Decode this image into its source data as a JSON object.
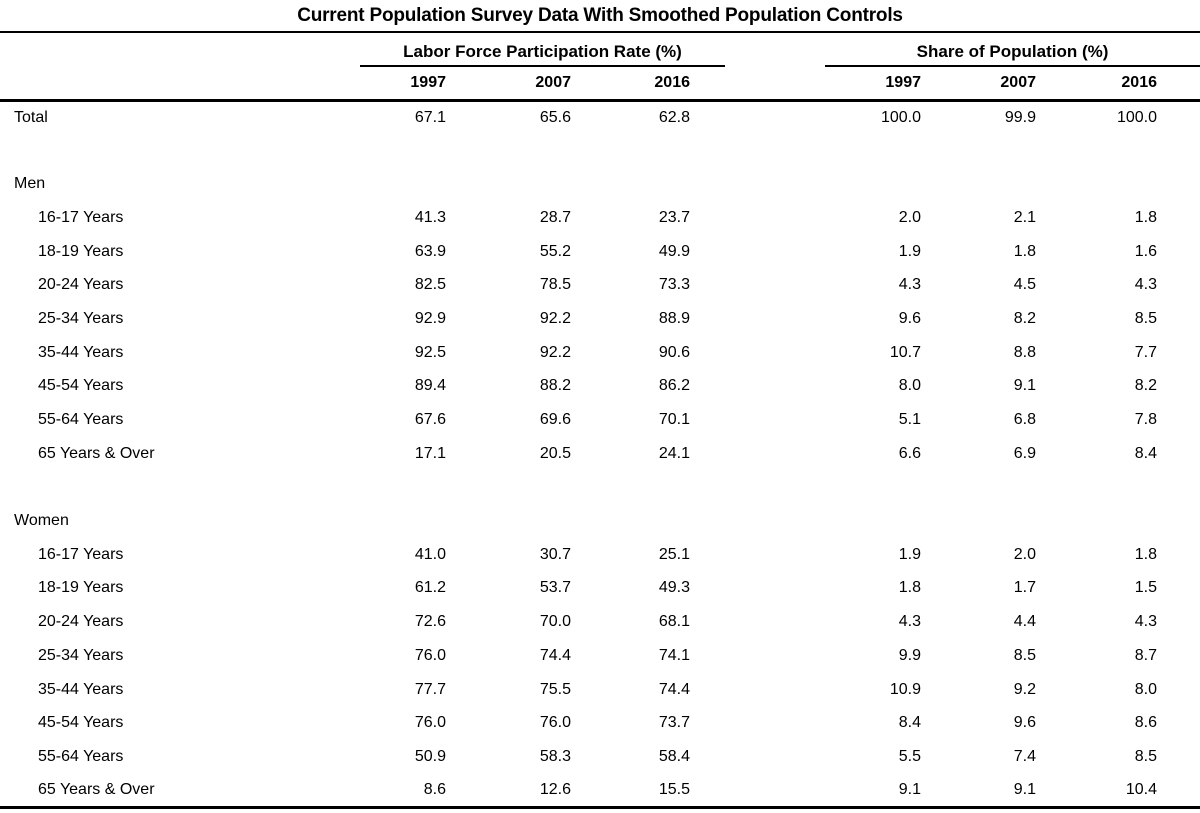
{
  "chart_data": {
    "type": "table",
    "title": "Current Population Survey Data With Smoothed Population Controls",
    "column_groups": [
      {
        "label": "Labor Force Participation Rate (%)",
        "years": [
          "1997",
          "2007",
          "2016"
        ]
      },
      {
        "label": "Share of Population (%)",
        "years": [
          "1997",
          "2007",
          "2016"
        ]
      }
    ],
    "rows": [
      {
        "type": "data",
        "indent": 0,
        "label": "Total",
        "lfpr": [
          "67.1",
          "65.6",
          "62.8"
        ],
        "share": [
          "100.0",
          "99.9",
          "100.0"
        ]
      },
      {
        "type": "spacer"
      },
      {
        "type": "section",
        "label": "Men"
      },
      {
        "type": "data",
        "indent": 1,
        "label": "16-17 Years",
        "lfpr": [
          "41.3",
          "28.7",
          "23.7"
        ],
        "share": [
          "2.0",
          "2.1",
          "1.8"
        ]
      },
      {
        "type": "data",
        "indent": 1,
        "label": "18-19 Years",
        "lfpr": [
          "63.9",
          "55.2",
          "49.9"
        ],
        "share": [
          "1.9",
          "1.8",
          "1.6"
        ]
      },
      {
        "type": "data",
        "indent": 1,
        "label": "20-24 Years",
        "lfpr": [
          "82.5",
          "78.5",
          "73.3"
        ],
        "share": [
          "4.3",
          "4.5",
          "4.3"
        ]
      },
      {
        "type": "data",
        "indent": 1,
        "label": "25-34 Years",
        "lfpr": [
          "92.9",
          "92.2",
          "88.9"
        ],
        "share": [
          "9.6",
          "8.2",
          "8.5"
        ]
      },
      {
        "type": "data",
        "indent": 1,
        "label": "35-44 Years",
        "lfpr": [
          "92.5",
          "92.2",
          "90.6"
        ],
        "share": [
          "10.7",
          "8.8",
          "7.7"
        ]
      },
      {
        "type": "data",
        "indent": 1,
        "label": "45-54 Years",
        "lfpr": [
          "89.4",
          "88.2",
          "86.2"
        ],
        "share": [
          "8.0",
          "9.1",
          "8.2"
        ]
      },
      {
        "type": "data",
        "indent": 1,
        "label": "55-64 Years",
        "lfpr": [
          "67.6",
          "69.6",
          "70.1"
        ],
        "share": [
          "5.1",
          "6.8",
          "7.8"
        ]
      },
      {
        "type": "data",
        "indent": 1,
        "label": "65 Years & Over",
        "lfpr": [
          "17.1",
          "20.5",
          "24.1"
        ],
        "share": [
          "6.6",
          "6.9",
          "8.4"
        ]
      },
      {
        "type": "spacer"
      },
      {
        "type": "section",
        "label": "Women"
      },
      {
        "type": "data",
        "indent": 1,
        "label": "16-17 Years",
        "lfpr": [
          "41.0",
          "30.7",
          "25.1"
        ],
        "share": [
          "1.9",
          "2.0",
          "1.8"
        ]
      },
      {
        "type": "data",
        "indent": 1,
        "label": "18-19 Years",
        "lfpr": [
          "61.2",
          "53.7",
          "49.3"
        ],
        "share": [
          "1.8",
          "1.7",
          "1.5"
        ]
      },
      {
        "type": "data",
        "indent": 1,
        "label": "20-24 Years",
        "lfpr": [
          "72.6",
          "70.0",
          "68.1"
        ],
        "share": [
          "4.3",
          "4.4",
          "4.3"
        ]
      },
      {
        "type": "data",
        "indent": 1,
        "label": "25-34 Years",
        "lfpr": [
          "76.0",
          "74.4",
          "74.1"
        ],
        "share": [
          "9.9",
          "8.5",
          "8.7"
        ]
      },
      {
        "type": "data",
        "indent": 1,
        "label": "35-44 Years",
        "lfpr": [
          "77.7",
          "75.5",
          "74.4"
        ],
        "share": [
          "10.9",
          "9.2",
          "8.0"
        ]
      },
      {
        "type": "data",
        "indent": 1,
        "label": "45-54 Years",
        "lfpr": [
          "76.0",
          "76.0",
          "73.7"
        ],
        "share": [
          "8.4",
          "9.6",
          "8.6"
        ]
      },
      {
        "type": "data",
        "indent": 1,
        "label": "55-64 Years",
        "lfpr": [
          "50.9",
          "58.3",
          "58.4"
        ],
        "share": [
          "5.5",
          "7.4",
          "8.5"
        ]
      },
      {
        "type": "data",
        "indent": 1,
        "label": "65 Years & Over",
        "lfpr": [
          "8.6",
          "12.6",
          "15.5"
        ],
        "share": [
          "9.1",
          "9.1",
          "10.4"
        ]
      }
    ],
    "layout": {
      "text_color": "#000000",
      "rule_color": "#000000",
      "background": "#ffffff"
    }
  }
}
